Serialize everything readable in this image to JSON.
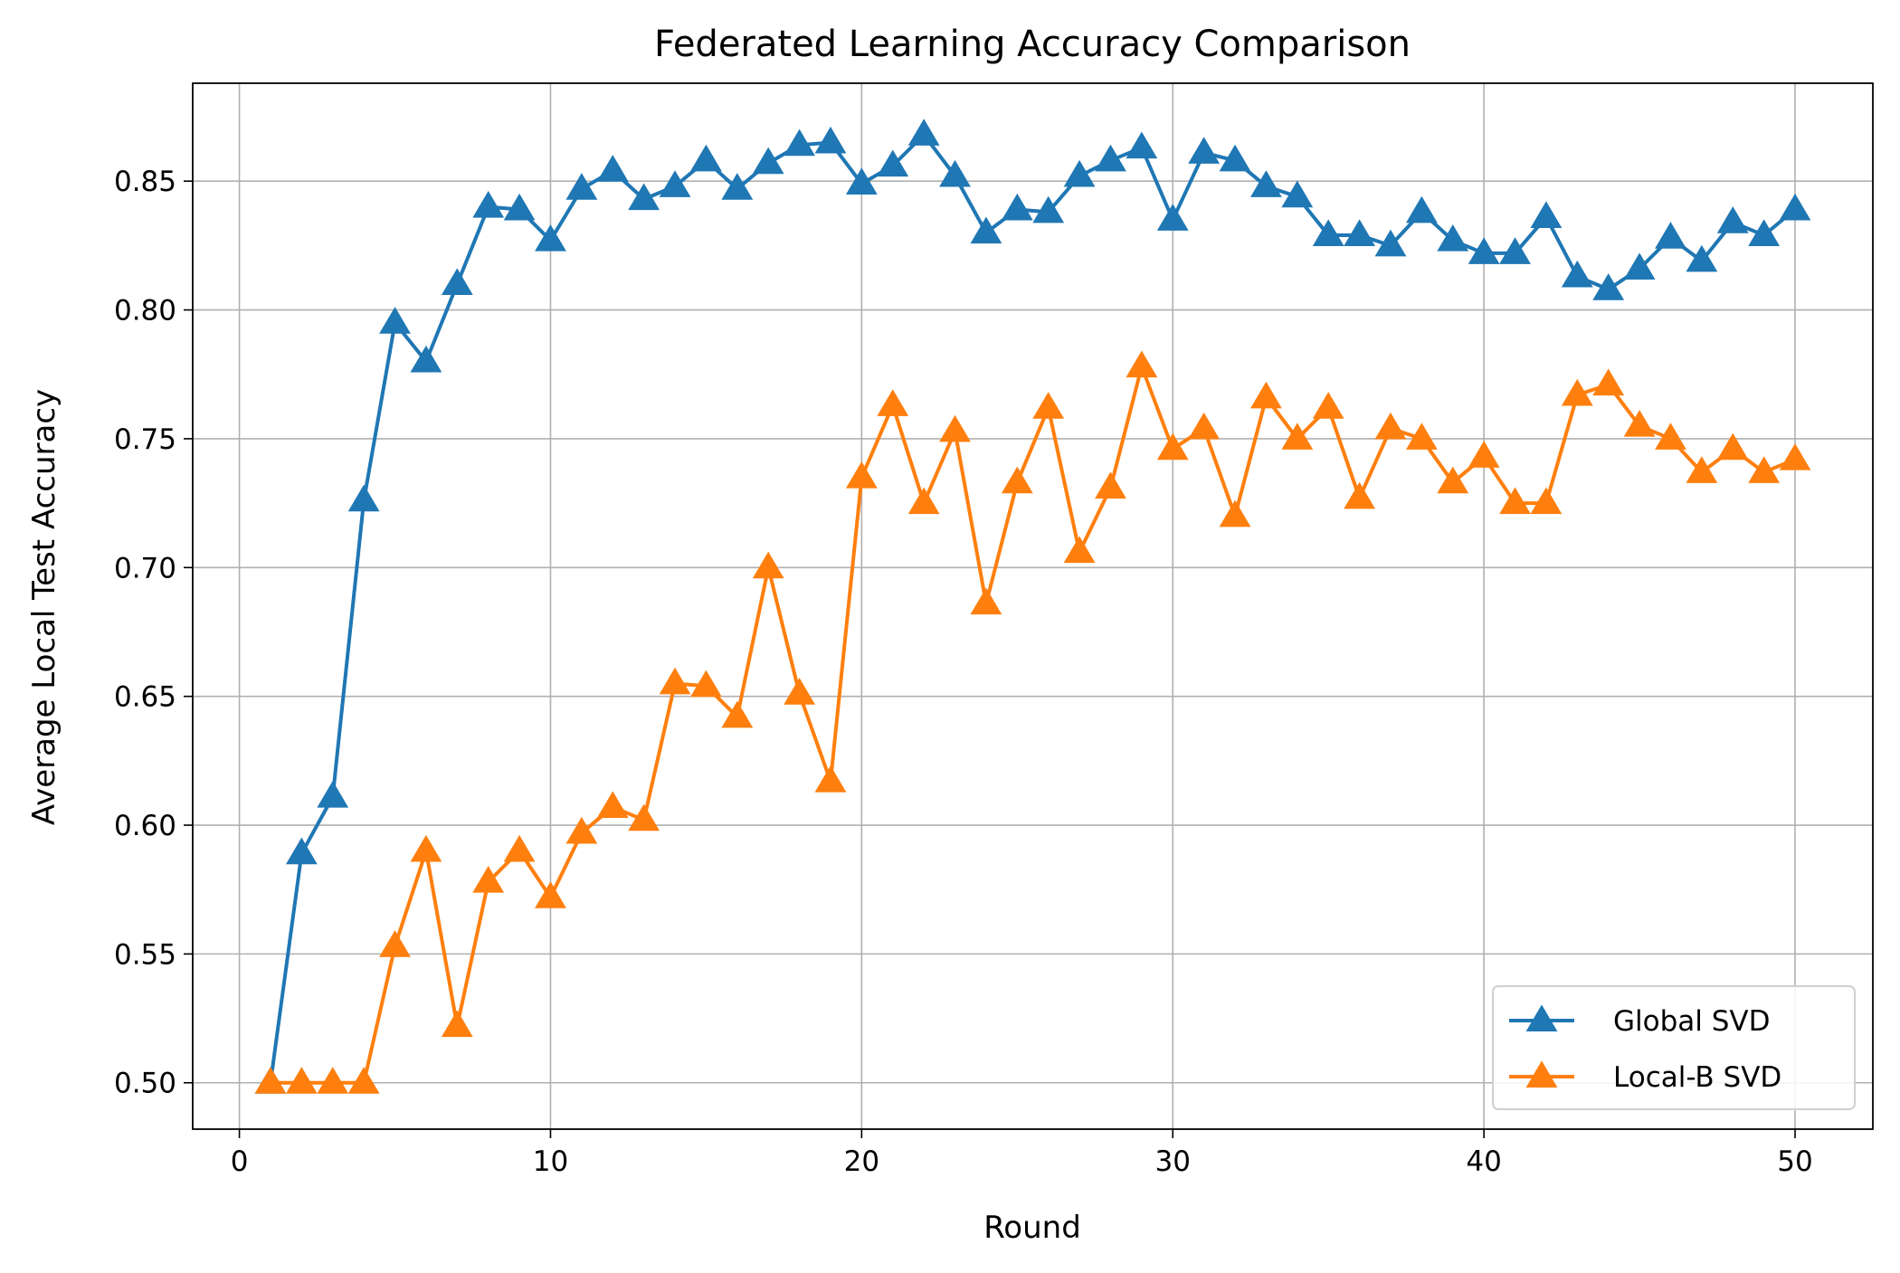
{
  "chart_data": {
    "type": "line",
    "title": "Federated Learning Accuracy Comparison",
    "xlabel": "Round",
    "ylabel": "Average Local Test Accuracy",
    "xlim": [
      -1.5,
      52.5
    ],
    "ylim": [
      0.482,
      0.888
    ],
    "xticks": [
      0,
      10,
      20,
      30,
      40,
      50
    ],
    "xtick_labels": [
      "0",
      "10",
      "20",
      "30",
      "40",
      "50"
    ],
    "yticks": [
      0.5,
      0.55,
      0.6,
      0.65,
      0.7,
      0.75,
      0.8,
      0.85
    ],
    "ytick_labels": [
      "0.50",
      "0.55",
      "0.60",
      "0.65",
      "0.70",
      "0.75",
      "0.80",
      "0.85"
    ],
    "grid": true,
    "legend_position": "lower-right",
    "x": [
      1,
      2,
      3,
      4,
      5,
      6,
      7,
      8,
      9,
      10,
      11,
      12,
      13,
      14,
      15,
      16,
      17,
      18,
      19,
      20,
      21,
      22,
      23,
      24,
      25,
      26,
      27,
      28,
      29,
      30,
      31,
      32,
      33,
      34,
      35,
      36,
      37,
      38,
      39,
      40,
      41,
      42,
      43,
      44,
      45,
      46,
      47,
      48,
      49,
      50
    ],
    "series": [
      {
        "name": "Global SVD",
        "color": "#1f77b4",
        "marker": "triangle-up",
        "values": [
          0.5,
          0.589,
          0.611,
          0.726,
          0.795,
          0.78,
          0.81,
          0.84,
          0.839,
          0.827,
          0.847,
          0.854,
          0.843,
          0.848,
          0.858,
          0.847,
          0.857,
          0.864,
          0.865,
          0.849,
          0.856,
          0.868,
          0.852,
          0.83,
          0.839,
          0.838,
          0.852,
          0.858,
          0.863,
          0.835,
          0.861,
          0.858,
          0.848,
          0.844,
          0.829,
          0.829,
          0.825,
          0.838,
          0.827,
          0.822,
          0.822,
          0.836,
          0.813,
          0.808,
          0.816,
          0.828,
          0.819,
          0.834,
          0.829,
          0.839
        ]
      },
      {
        "name": "Local-B SVD",
        "color": "#ff7f0e",
        "marker": "triangle-up",
        "values": [
          0.5,
          0.5,
          0.5,
          0.5,
          0.553,
          0.59,
          0.522,
          0.578,
          0.59,
          0.572,
          0.597,
          0.607,
          0.602,
          0.655,
          0.654,
          0.642,
          0.7,
          0.651,
          0.617,
          0.735,
          0.763,
          0.725,
          0.753,
          0.686,
          0.733,
          0.762,
          0.706,
          0.731,
          0.778,
          0.746,
          0.754,
          0.72,
          0.766,
          0.75,
          0.762,
          0.727,
          0.754,
          0.75,
          0.733,
          0.743,
          0.725,
          0.725,
          0.767,
          0.771,
          0.755,
          0.75,
          0.737,
          0.746,
          0.737,
          0.742
        ]
      }
    ]
  }
}
